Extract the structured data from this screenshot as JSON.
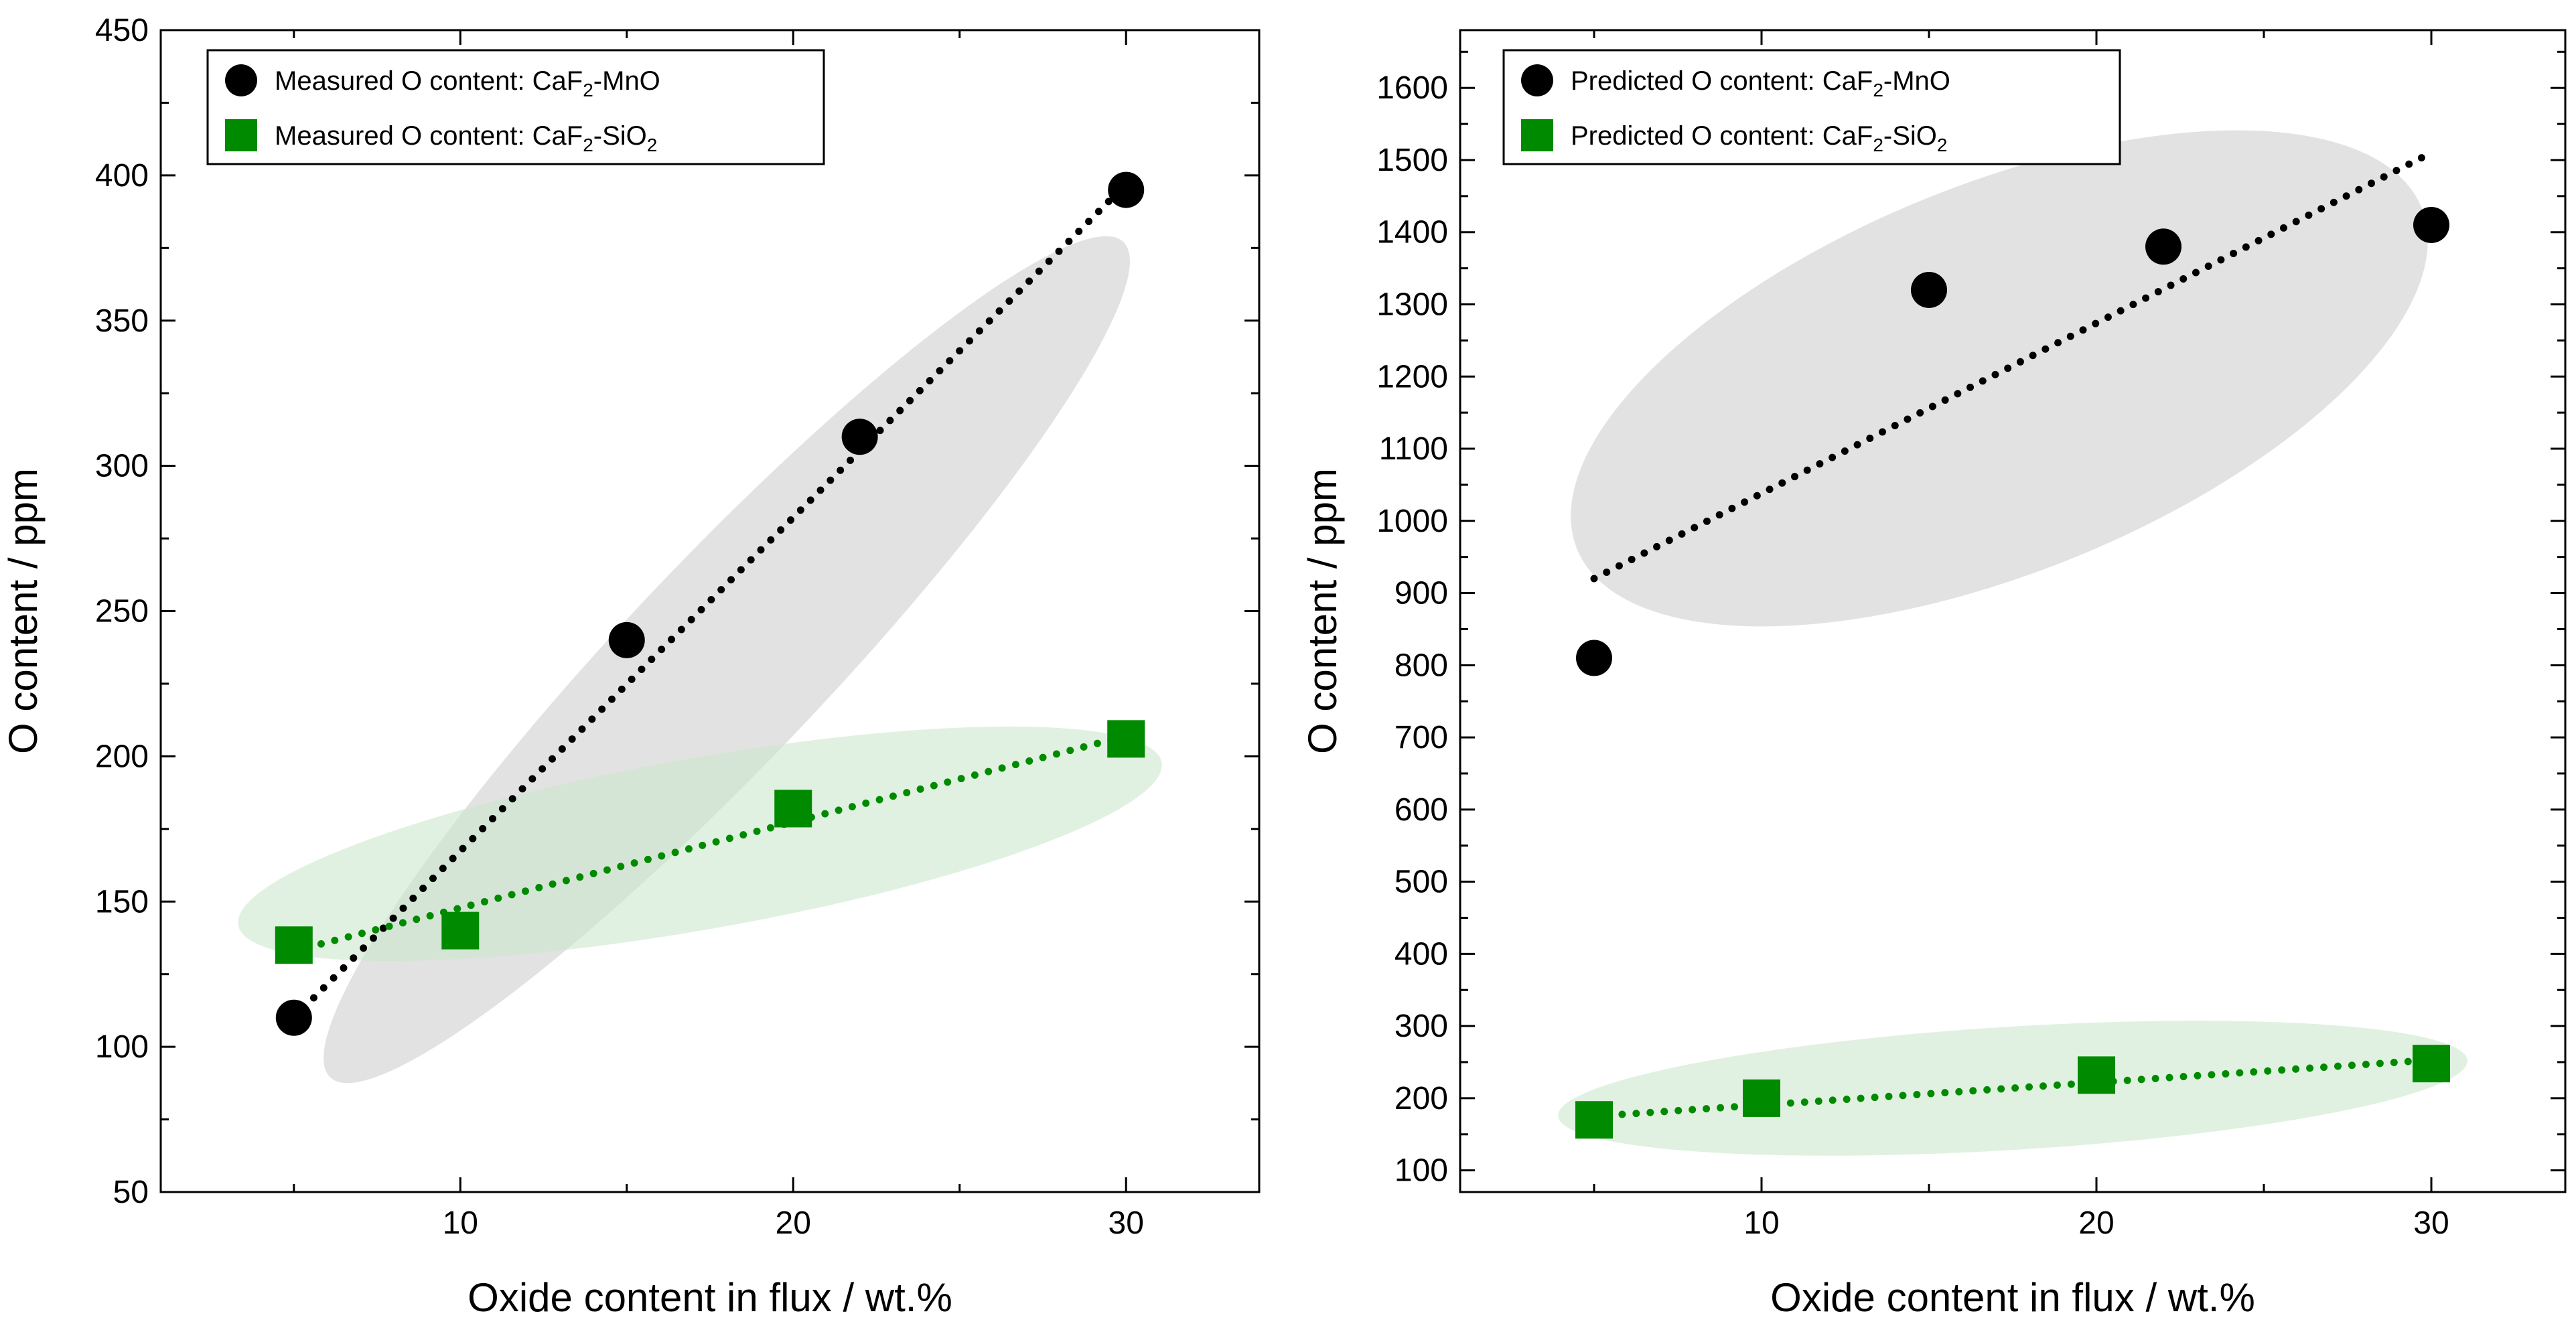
{
  "colors": {
    "mno": "#000000",
    "sio2": "#008a00",
    "ellipse_mno": "#d2d2d2",
    "ellipse_sio2": "#cde8cd"
  },
  "chart_data": [
    {
      "type": "scatter",
      "name": "measured",
      "xlabel": "Oxide content in flux / wt.%",
      "ylabel": "O content / ppm",
      "xlim": [
        1,
        34
      ],
      "ylim": [
        50,
        450
      ],
      "xticks": [
        10,
        20,
        30
      ],
      "yticks": [
        50,
        100,
        150,
        200,
        250,
        300,
        350,
        400,
        450
      ],
      "legend_placement": "top-left",
      "series": [
        {
          "name": "Measured O content: CaF2-MnO",
          "legend": {
            "prefix": "Measured O content: CaF",
            "sub": "2",
            "suffix": "-MnO"
          },
          "marker": "circle",
          "color": "#000000",
          "x": [
            5,
            15,
            22,
            30
          ],
          "y": [
            110,
            240,
            310,
            395
          ],
          "trend": {
            "x": [
              5,
              30
            ],
            "y": [
              110,
              397
            ]
          }
        },
        {
          "name": "Measured O content: CaF2-SiO2",
          "legend": {
            "prefix": "Measured O content: CaF",
            "sub": "2",
            "suffix": "-SiO",
            "sub2": "2"
          },
          "marker": "square",
          "color": "#008a00",
          "x": [
            5,
            10,
            20,
            30
          ],
          "y": [
            135,
            140,
            182,
            206
          ],
          "trend": {
            "x": [
              5,
              30
            ],
            "y": [
              133,
              207
            ]
          }
        }
      ]
    },
    {
      "type": "scatter",
      "name": "predicted",
      "xlabel": "Oxide content in flux / wt.%",
      "ylabel": "O content / ppm",
      "xlim": [
        1,
        34
      ],
      "ylim": [
        70,
        1680
      ],
      "xticks": [
        10,
        20,
        30
      ],
      "yticks": [
        100,
        200,
        300,
        400,
        500,
        600,
        700,
        800,
        900,
        1000,
        1100,
        1200,
        1300,
        1400,
        1500,
        1600
      ],
      "legend_placement": "top-left",
      "series": [
        {
          "name": "Predicted O content: CaF2-MnO",
          "legend": {
            "prefix": "Predicted O content: CaF",
            "sub": "2",
            "suffix": "-MnO"
          },
          "marker": "circle",
          "color": "#000000",
          "x": [
            5,
            15,
            22,
            30
          ],
          "y": [
            810,
            1320,
            1380,
            1410
          ],
          "trend": {
            "x": [
              5,
              30
            ],
            "y": [
              920,
              1510
            ]
          }
        },
        {
          "name": "Predicted O content: CaF2-SiO2",
          "legend": {
            "prefix": "Predicted O content: CaF",
            "sub": "2",
            "suffix": "-SiO",
            "sub2": "2"
          },
          "marker": "square",
          "color": "#008a00",
          "x": [
            5,
            10,
            20,
            30
          ],
          "y": [
            170,
            200,
            232,
            248
          ],
          "trend": {
            "x": [
              5,
              30
            ],
            "y": [
              175,
              253
            ]
          }
        }
      ]
    }
  ]
}
